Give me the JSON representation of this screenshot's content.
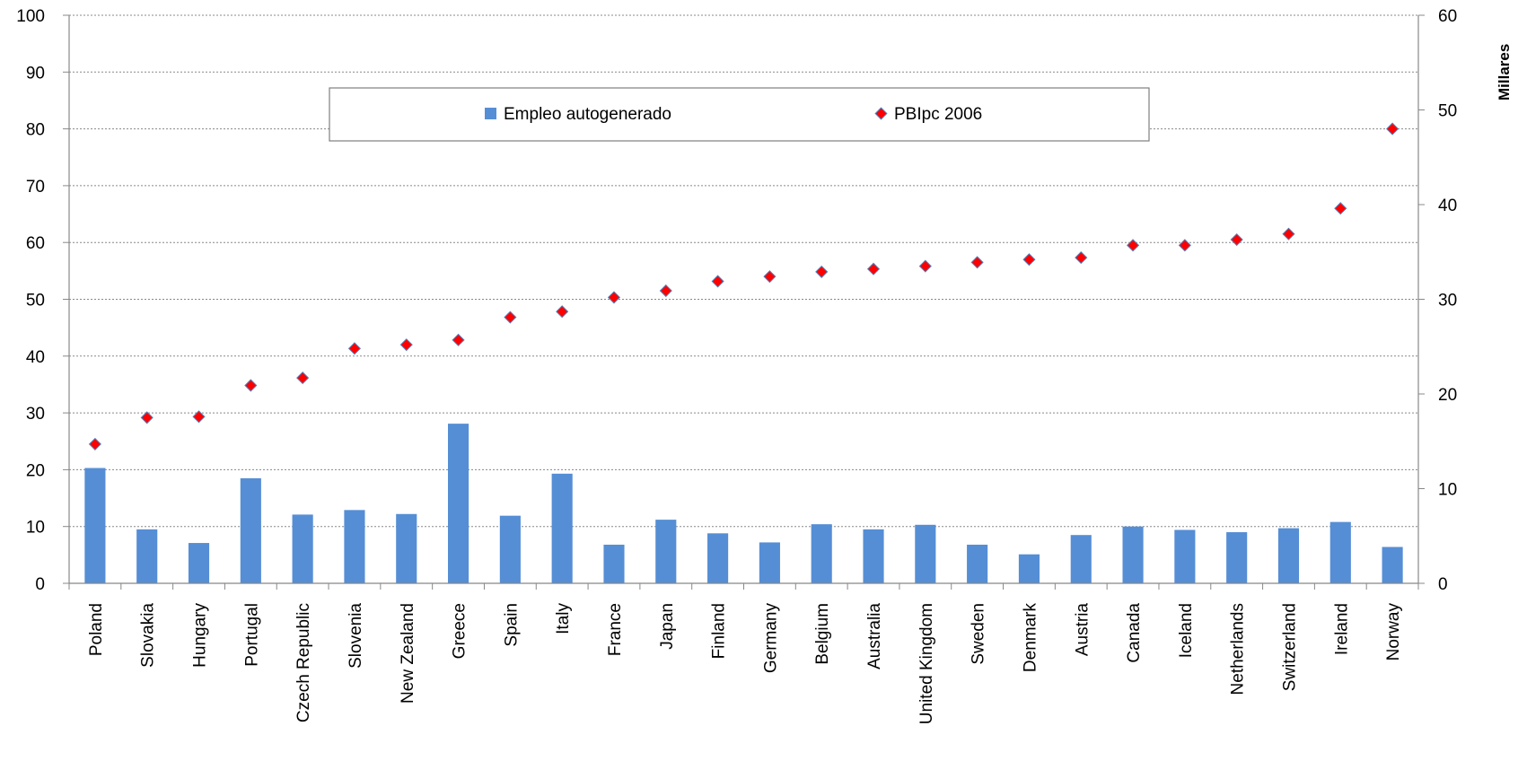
{
  "colors": {
    "bar": "#558ed5",
    "marker_fill": "#ff0000",
    "marker_stroke": "#4f81bd",
    "grid": "#888888",
    "axis": "#888888"
  },
  "chart_data": {
    "type": "bar",
    "title": "",
    "xlabel": "",
    "ylabel": "",
    "y2label": "Millares",
    "ylim": [
      0,
      100
    ],
    "y2lim": [
      0,
      60
    ],
    "yticks": [
      "0",
      "10",
      "20",
      "30",
      "40",
      "50",
      "60",
      "70",
      "80",
      "90",
      "100"
    ],
    "y2ticks": [
      "0",
      "10",
      "20",
      "30",
      "40",
      "50",
      "60"
    ],
    "grid": true,
    "legend_position": "top-center",
    "categories": [
      "Poland",
      "Slovakia",
      "Hungary",
      "Portugal",
      "Czech Republic",
      "Slovenia",
      "New Zealand",
      "Greece",
      "Spain",
      "Italy",
      "France",
      "Japan",
      "Finland",
      "Germany",
      "Belgium",
      "Australia",
      "United Kingdom",
      "Sweden",
      "Denmark",
      "Austria",
      "Canada",
      "Iceland",
      "Netherlands",
      "Switzerland",
      "Ireland",
      "Norway"
    ],
    "series": [
      {
        "name": "Empleo autogenerado",
        "type": "bar",
        "axis": "left",
        "values": [
          20.3,
          9.5,
          7.1,
          18.5,
          12.1,
          12.9,
          12.2,
          28.1,
          11.9,
          19.3,
          6.8,
          11.2,
          8.8,
          7.2,
          10.4,
          9.5,
          10.3,
          6.8,
          5.1,
          8.5,
          10.0,
          9.4,
          9.0,
          9.7,
          10.8,
          6.4
        ]
      },
      {
        "name": "PBIpc 2006",
        "type": "scatter",
        "axis": "right",
        "values": [
          14.7,
          17.5,
          17.6,
          20.9,
          21.7,
          24.8,
          25.2,
          25.7,
          28.1,
          28.7,
          30.2,
          30.9,
          31.9,
          32.4,
          32.9,
          33.2,
          33.5,
          33.9,
          34.2,
          34.4,
          35.7,
          35.7,
          36.3,
          36.9,
          39.6,
          48.0
        ]
      }
    ]
  }
}
